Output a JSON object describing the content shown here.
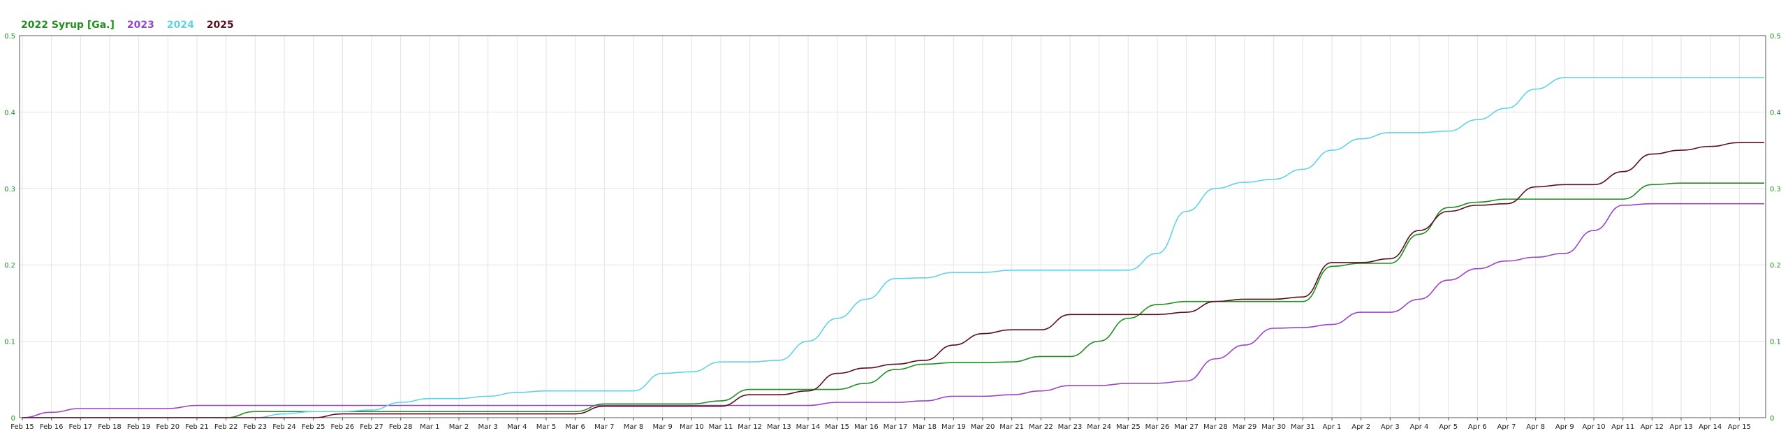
{
  "legend": [
    {
      "label": "2022 Syrup [Ga.]",
      "color": "#1f8f1f"
    },
    {
      "label": "2023",
      "color": "#9a44c8"
    },
    {
      "label": "2024",
      "color": "#5fd3e6"
    },
    {
      "label": "2025",
      "color": "#5a0f1e"
    }
  ],
  "chart_data": {
    "type": "line",
    "title": "",
    "xlabel": "",
    "ylabel": "",
    "ylim": [
      0,
      0.5
    ],
    "yticks": [
      "0",
      "0.1",
      "0.2",
      "0.3",
      "0.4",
      "0.5"
    ],
    "y_axis_color": "#1f8f1f",
    "grid": true,
    "legend_position": "top-left",
    "categories": [
      "Feb 15",
      "Feb 16",
      "Feb 17",
      "Feb 18",
      "Feb 19",
      "Feb 20",
      "Feb 21",
      "Feb 22",
      "Feb 23",
      "Feb 24",
      "Feb 25",
      "Feb 26",
      "Feb 27",
      "Feb 28",
      "Mar 1",
      "Mar 2",
      "Mar 3",
      "Mar 4",
      "Mar 5",
      "Mar 6",
      "Mar 7",
      "Mar 8",
      "Mar 9",
      "Mar 10",
      "Mar 11",
      "Mar 12",
      "Mar 13",
      "Mar 14",
      "Mar 15",
      "Mar 16",
      "Mar 17",
      "Mar 18",
      "Mar 19",
      "Mar 20",
      "Mar 21",
      "Mar 22",
      "Mar 23",
      "Mar 24",
      "Mar 25",
      "Mar 26",
      "Mar 27",
      "Mar 28",
      "Mar 29",
      "Mar 30",
      "Mar 31",
      "Apr 1",
      "Apr 2",
      "Apr 3",
      "Apr 4",
      "Apr 5",
      "Apr 6",
      "Apr 7",
      "Apr 8",
      "Apr 9",
      "Apr 10",
      "Apr 11",
      "Apr 12",
      "Apr 13",
      "Apr 14",
      "Apr 15"
    ],
    "series": [
      {
        "name": "2022 Syrup [Ga.]",
        "color": "#1f8f1f",
        "values": [
          0,
          0,
          0,
          0,
          0,
          0,
          0,
          0,
          0.008,
          0.008,
          0.008,
          0.008,
          0.008,
          0.008,
          0.008,
          0.008,
          0.008,
          0.008,
          0.008,
          0.008,
          0.018,
          0.018,
          0.018,
          0.018,
          0.022,
          0.037,
          0.037,
          0.037,
          0.037,
          0.045,
          0.063,
          0.07,
          0.072,
          0.072,
          0.073,
          0.08,
          0.08,
          0.1,
          0.13,
          0.148,
          0.152,
          0.152,
          0.152,
          0.152,
          0.152,
          0.198,
          0.202,
          0.202,
          0.24,
          0.275,
          0.282,
          0.286,
          0.286,
          0.286,
          0.286,
          0.286,
          0.305,
          0.307,
          0.307,
          0.307
        ]
      },
      {
        "name": "2023",
        "color": "#9a44c8",
        "values": [
          0,
          0.007,
          0.012,
          0.012,
          0.012,
          0.012,
          0.016,
          0.016,
          0.016,
          0.016,
          0.016,
          0.016,
          0.016,
          0.016,
          0.016,
          0.016,
          0.016,
          0.016,
          0.016,
          0.016,
          0.016,
          0.016,
          0.016,
          0.016,
          0.016,
          0.016,
          0.016,
          0.016,
          0.02,
          0.02,
          0.02,
          0.022,
          0.028,
          0.028,
          0.03,
          0.035,
          0.042,
          0.042,
          0.045,
          0.045,
          0.048,
          0.077,
          0.095,
          0.117,
          0.118,
          0.122,
          0.138,
          0.138,
          0.155,
          0.18,
          0.195,
          0.205,
          0.21,
          0.215,
          0.245,
          0.278,
          0.28,
          0.28,
          0.28,
          0.28
        ]
      },
      {
        "name": "2024",
        "color": "#5fd3e6",
        "values": [
          0,
          0,
          0,
          0,
          0,
          0,
          0,
          0,
          0,
          0.005,
          0.008,
          0.008,
          0.01,
          0.02,
          0.025,
          0.025,
          0.028,
          0.033,
          0.035,
          0.035,
          0.035,
          0.035,
          0.058,
          0.06,
          0.073,
          0.073,
          0.075,
          0.1,
          0.13,
          0.155,
          0.182,
          0.183,
          0.19,
          0.19,
          0.193,
          0.193,
          0.193,
          0.193,
          0.193,
          0.215,
          0.27,
          0.3,
          0.308,
          0.312,
          0.325,
          0.35,
          0.365,
          0.373,
          0.373,
          0.375,
          0.39,
          0.405,
          0.43,
          0.445,
          0.445,
          0.445,
          0.445,
          0.445,
          0.445,
          0.445
        ]
      },
      {
        "name": "2025",
        "color": "#5a0f1e",
        "values": [
          0,
          0,
          0,
          0,
          0,
          0,
          0,
          0,
          0,
          0,
          0,
          0.005,
          0.005,
          0.005,
          0.005,
          0.005,
          0.005,
          0.005,
          0.005,
          0.005,
          0.015,
          0.015,
          0.015,
          0.015,
          0.015,
          0.03,
          0.03,
          0.035,
          0.058,
          0.065,
          0.07,
          0.075,
          0.095,
          0.11,
          0.115,
          0.115,
          0.135,
          0.135,
          0.135,
          0.135,
          0.138,
          0.152,
          0.155,
          0.155,
          0.158,
          0.203,
          0.203,
          0.208,
          0.245,
          0.27,
          0.278,
          0.28,
          0.302,
          0.305,
          0.305,
          0.322,
          0.345,
          0.35,
          0.355,
          0.36
        ]
      }
    ]
  }
}
